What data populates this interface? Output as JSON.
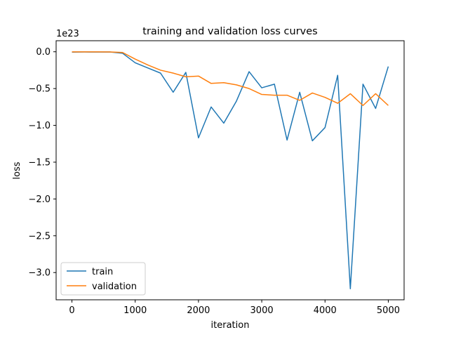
{
  "chart_data": {
    "type": "line",
    "title": "training and validation loss curves",
    "xlabel": "iteration",
    "ylabel": "loss",
    "offset_label": "1e23",
    "xlim": [
      -250,
      5250
    ],
    "ylim": [
      -3.37,
      0.15
    ],
    "x_ticks": [
      0,
      1000,
      2000,
      3000,
      4000,
      5000
    ],
    "x_tick_labels": [
      "0",
      "1000",
      "2000",
      "3000",
      "4000",
      "5000"
    ],
    "y_ticks": [
      0.0,
      -0.5,
      -1.0,
      -1.5,
      -2.0,
      -2.5,
      -3.0
    ],
    "y_tick_labels": [
      "0.0",
      "−0.5",
      "−1.0",
      "−1.5",
      "−2.0",
      "−2.5",
      "−3.0"
    ],
    "grid": false,
    "legend_position": "bottom-left",
    "x": [
      0,
      200,
      400,
      600,
      800,
      1000,
      1200,
      1400,
      1600,
      1800,
      2000,
      2200,
      2400,
      2600,
      2800,
      3000,
      3200,
      3400,
      3600,
      3800,
      4000,
      4200,
      4400,
      4600,
      4800,
      5000
    ],
    "series": [
      {
        "name": "train",
        "color": "#1f77b4",
        "values": [
          -0.005,
          -0.003,
          -0.004,
          -0.003,
          -0.02,
          -0.15,
          -0.22,
          -0.29,
          -0.55,
          -0.28,
          -1.17,
          -0.75,
          -0.97,
          -0.67,
          -0.27,
          -0.49,
          -0.44,
          -1.2,
          -0.55,
          -1.21,
          -1.03,
          -0.32,
          -3.22,
          -0.44,
          -0.77,
          -0.2
        ]
      },
      {
        "name": "validation",
        "color": "#ff7f0e",
        "values": [
          -0.002,
          -0.002,
          -0.002,
          -0.003,
          -0.01,
          -0.1,
          -0.18,
          -0.25,
          -0.29,
          -0.34,
          -0.33,
          -0.43,
          -0.42,
          -0.45,
          -0.5,
          -0.58,
          -0.59,
          -0.59,
          -0.66,
          -0.56,
          -0.62,
          -0.7,
          -0.57,
          -0.73,
          -0.57,
          -0.73
        ]
      }
    ]
  }
}
